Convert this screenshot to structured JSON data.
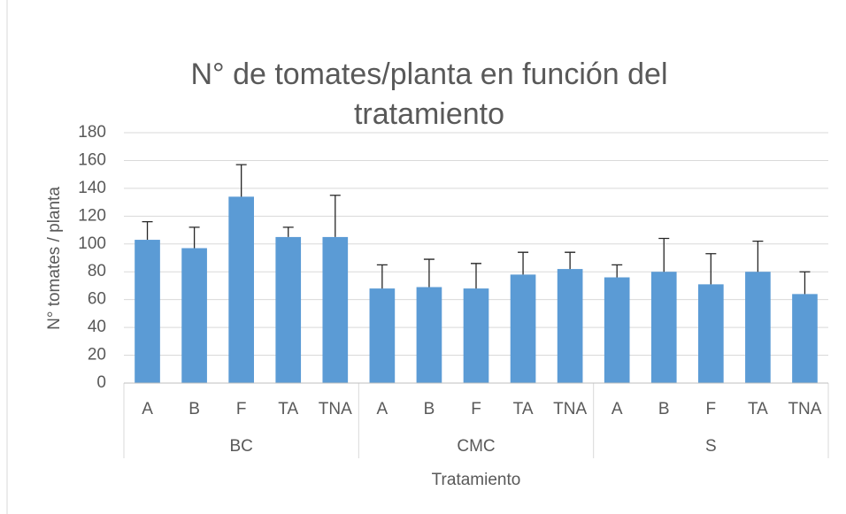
{
  "chart_data": {
    "type": "bar",
    "title": "N° de tomates/planta en función del tratamiento",
    "x_label": "Tratamiento",
    "y_label": "N° tomates / planta",
    "categories": [
      "A",
      "B",
      "F",
      "TA",
      "TNA",
      "A",
      "B",
      "F",
      "TA",
      "TNA",
      "A",
      "B",
      "F",
      "TA",
      "TNA"
    ],
    "category_groups": [
      "BC",
      "CMC",
      "S"
    ],
    "values": [
      103,
      97,
      134,
      105,
      105,
      68,
      69,
      68,
      78,
      82,
      76,
      80,
      71,
      80,
      64
    ],
    "errors": [
      13,
      15,
      23,
      7,
      30,
      17,
      20,
      18,
      16,
      12,
      9,
      24,
      22,
      22,
      16
    ],
    "color": "#5b9bd5",
    "ylim": [
      0,
      180
    ],
    "yticks": [
      0,
      20,
      40,
      60,
      80,
      100,
      120,
      140,
      160,
      180
    ],
    "grid": true
  }
}
